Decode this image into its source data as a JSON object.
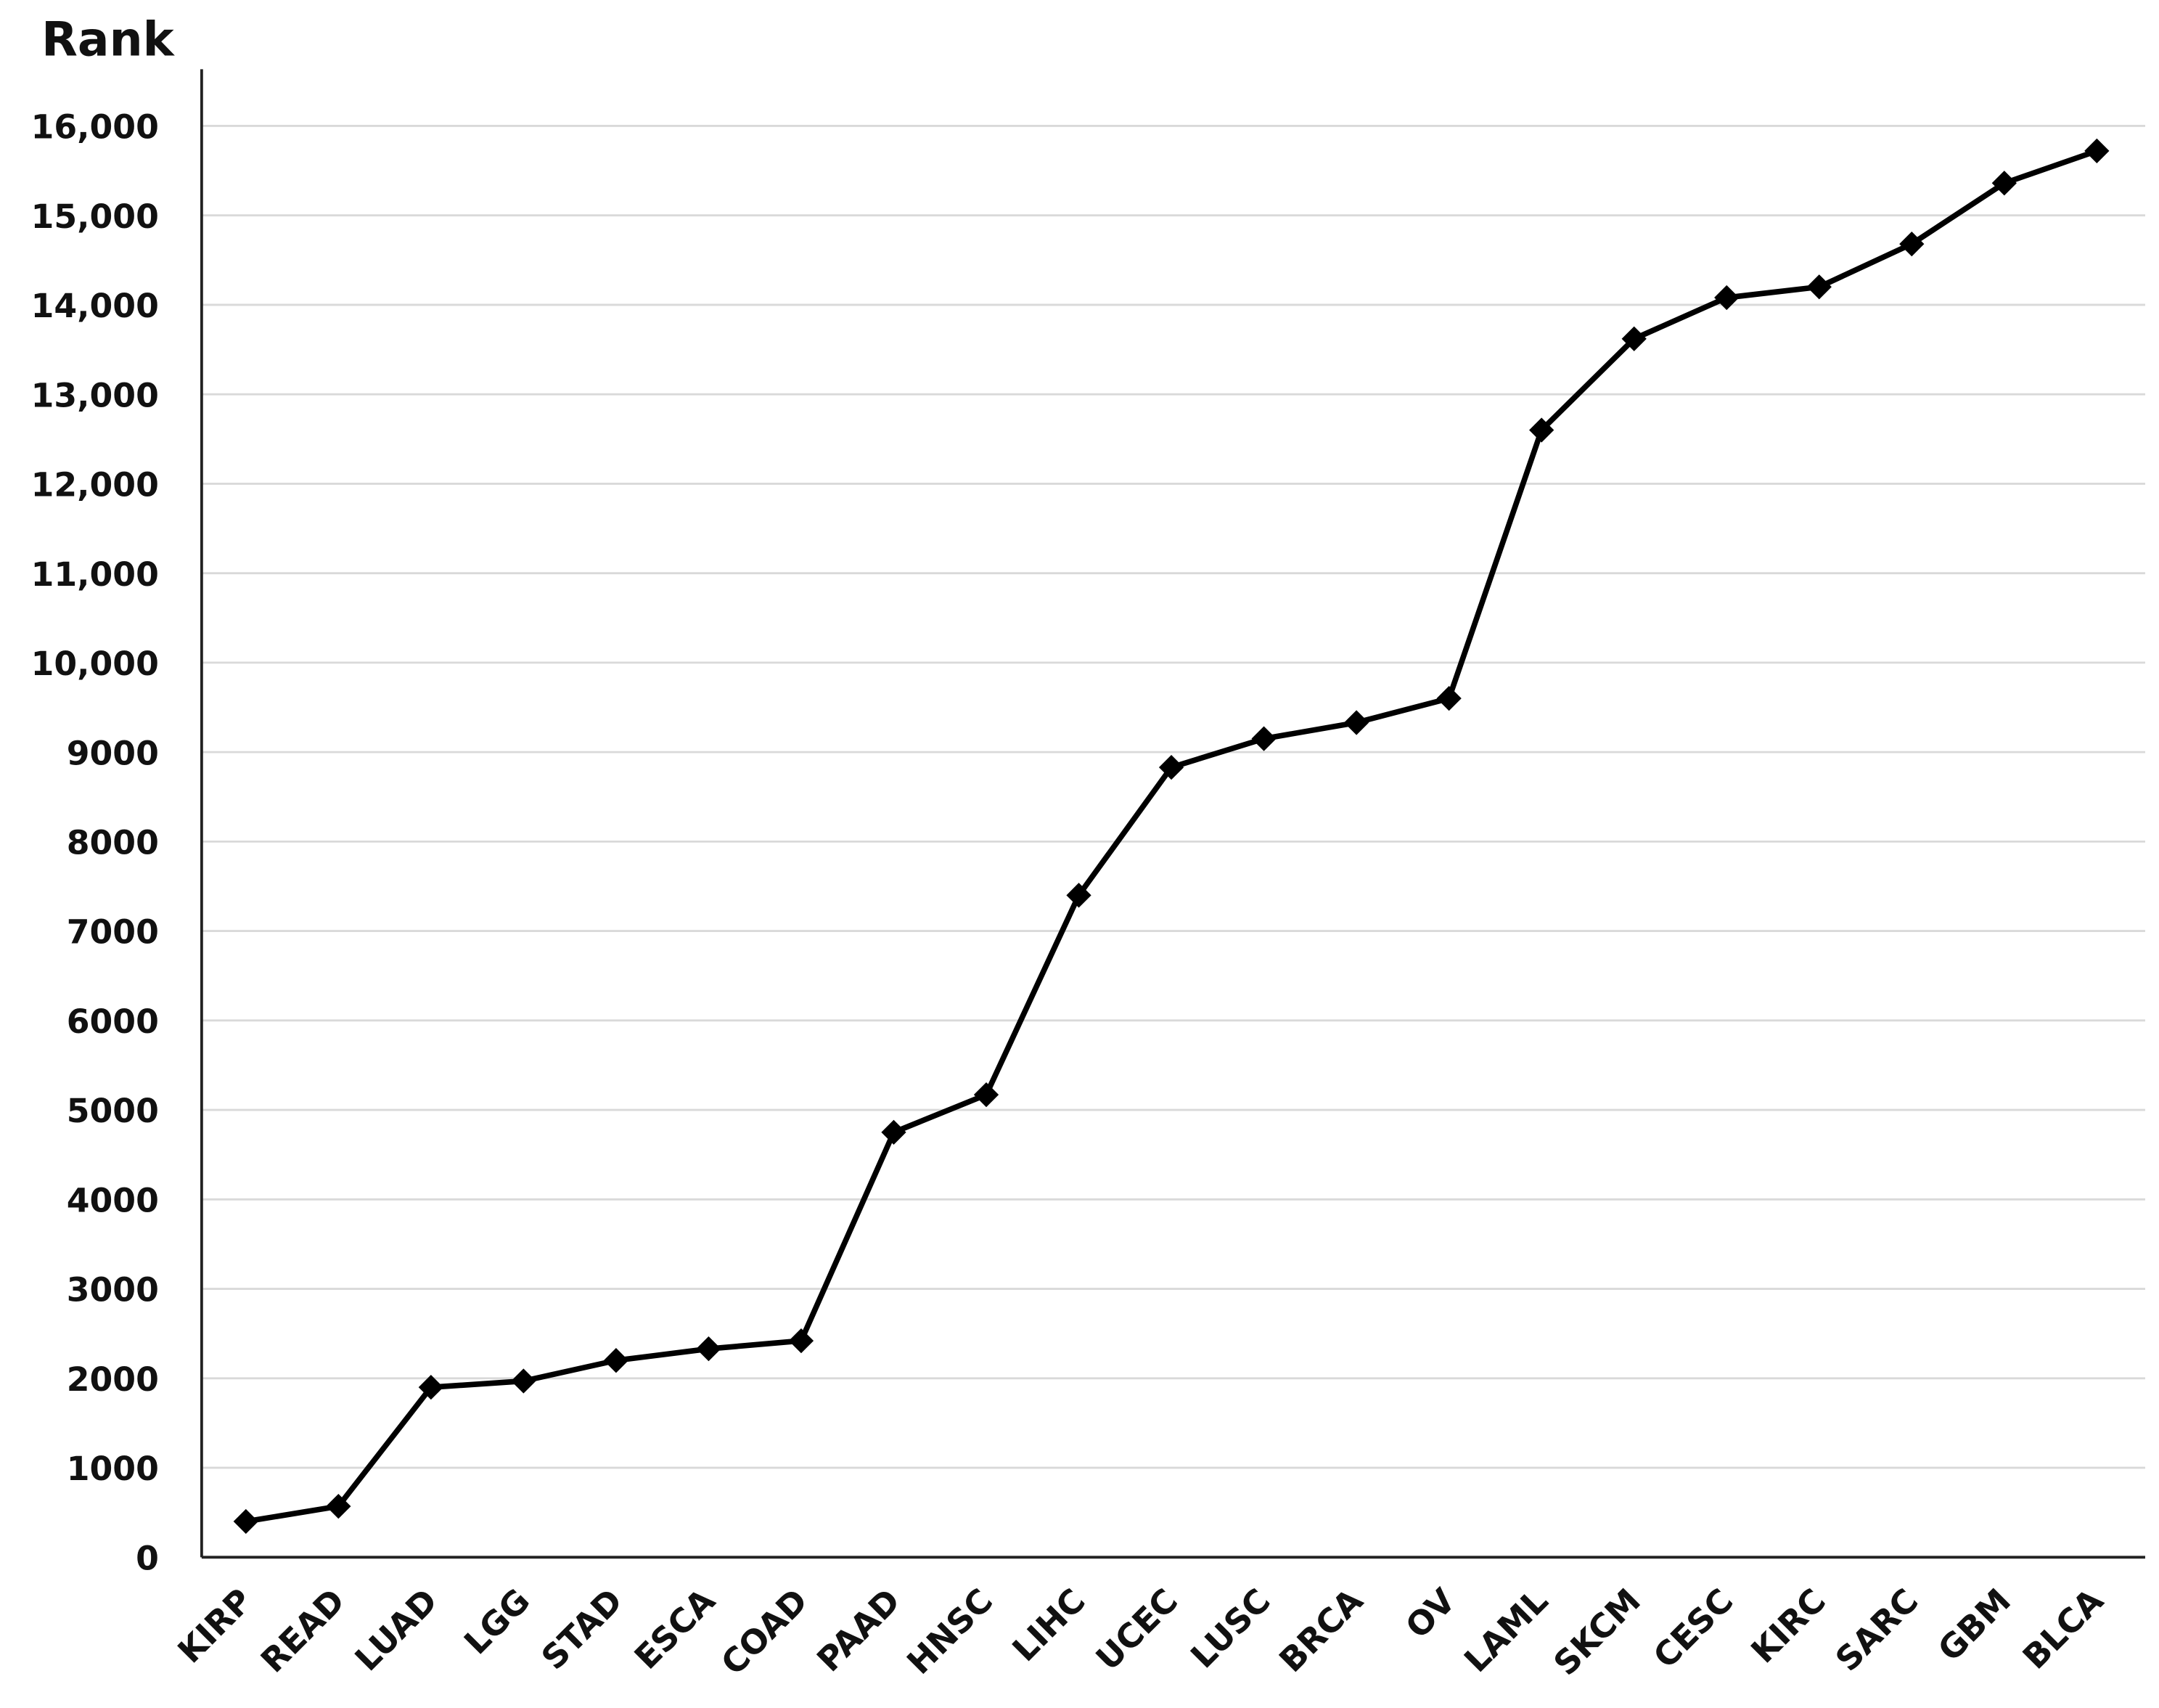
{
  "chart_data": {
    "type": "line",
    "y_label": "Rank",
    "categories": [
      "KIRP",
      "READ",
      "LUAD",
      "LGG",
      "STAD",
      "ESCA",
      "COAD",
      "PAAD",
      "HNSC",
      "LIHC",
      "UCEC",
      "LUSC",
      "BRCA",
      "OV",
      "LAML",
      "SKCM",
      "CESC",
      "KIRC",
      "SARC",
      "GBM",
      "BLCA"
    ],
    "series": [
      {
        "name": "Rank",
        "color": "#000000",
        "values": [
          400,
          570,
          1900,
          1970,
          2200,
          2330,
          2420,
          4750,
          5170,
          7400,
          8830,
          9150,
          9330,
          9600,
          12600,
          13620,
          14080,
          14200,
          14680,
          15360,
          15720
        ]
      }
    ],
    "ylim": [
      0,
      16000
    ],
    "yticks": [
      0,
      1000,
      2000,
      3000,
      4000,
      5000,
      6000,
      7000,
      8000,
      9000,
      {
        "value": 10000,
        "label": "10,000"
      },
      {
        "value": 11000,
        "label": "11,000"
      },
      {
        "value": 12000,
        "label": "12,000"
      },
      {
        "value": 13000,
        "label": "13,000"
      },
      {
        "value": 14000,
        "label": "14,000"
      },
      {
        "value": 15000,
        "label": "15,000"
      },
      {
        "value": 16000,
        "label": "16,000"
      }
    ],
    "grid": true
  }
}
